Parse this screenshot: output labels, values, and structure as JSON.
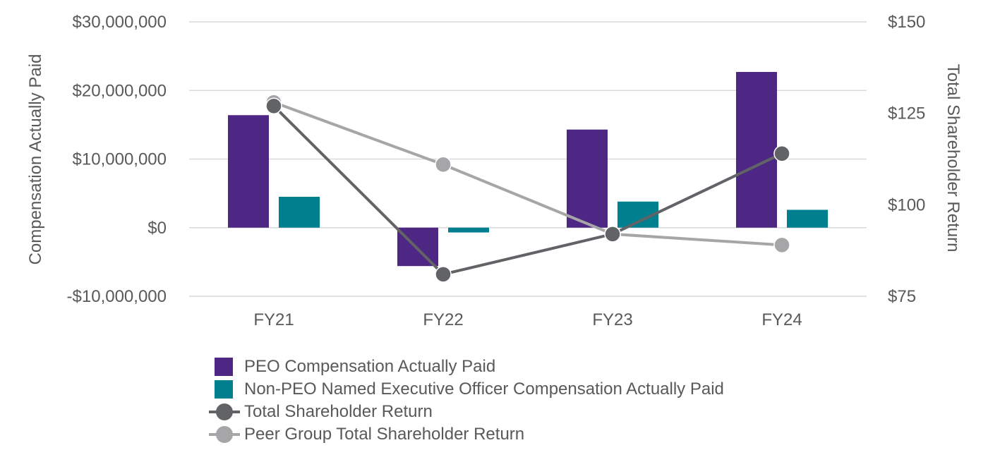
{
  "chart_data": {
    "type": "bar+line",
    "categories": [
      "FY21",
      "FY22",
      "FY23",
      "FY24"
    ],
    "left_axis": {
      "title": "Compensation Actually Paid",
      "range": [
        -10000000,
        30000000
      ],
      "ticks": [
        -10000000,
        0,
        10000000,
        20000000,
        30000000
      ],
      "tick_labels": [
        "-$10,000,000",
        "$0",
        "$10,000,000",
        "$20,000,000",
        "$30,000,000"
      ]
    },
    "right_axis": {
      "title": "Total Shareholder Return",
      "range": [
        75,
        150
      ],
      "ticks": [
        75,
        100,
        125,
        150
      ],
      "tick_labels": [
        "$75",
        "$100",
        "$125",
        "$150"
      ]
    },
    "grid": true,
    "legend_position": "bottom",
    "series": [
      {
        "name": "PEO Compensation Actually Paid",
        "type": "bar",
        "axis": "left",
        "color": "#4e2683",
        "values": [
          16400000,
          -5600000,
          14300000,
          22700000
        ]
      },
      {
        "name": "Non-PEO Named Executive Officer Compensation Actually Paid",
        "type": "bar",
        "axis": "left",
        "color": "#00808f",
        "values": [
          4500000,
          -700000,
          3800000,
          2600000
        ]
      },
      {
        "name": "Total Shareholder Return",
        "type": "line",
        "axis": "right",
        "color": "#616366",
        "values": [
          127,
          81,
          92,
          114
        ]
      },
      {
        "name": "Peer Group Total Shareholder Return",
        "type": "line",
        "axis": "right",
        "color": "#a6a6a9",
        "values": [
          128,
          111,
          92,
          89
        ]
      }
    ]
  }
}
